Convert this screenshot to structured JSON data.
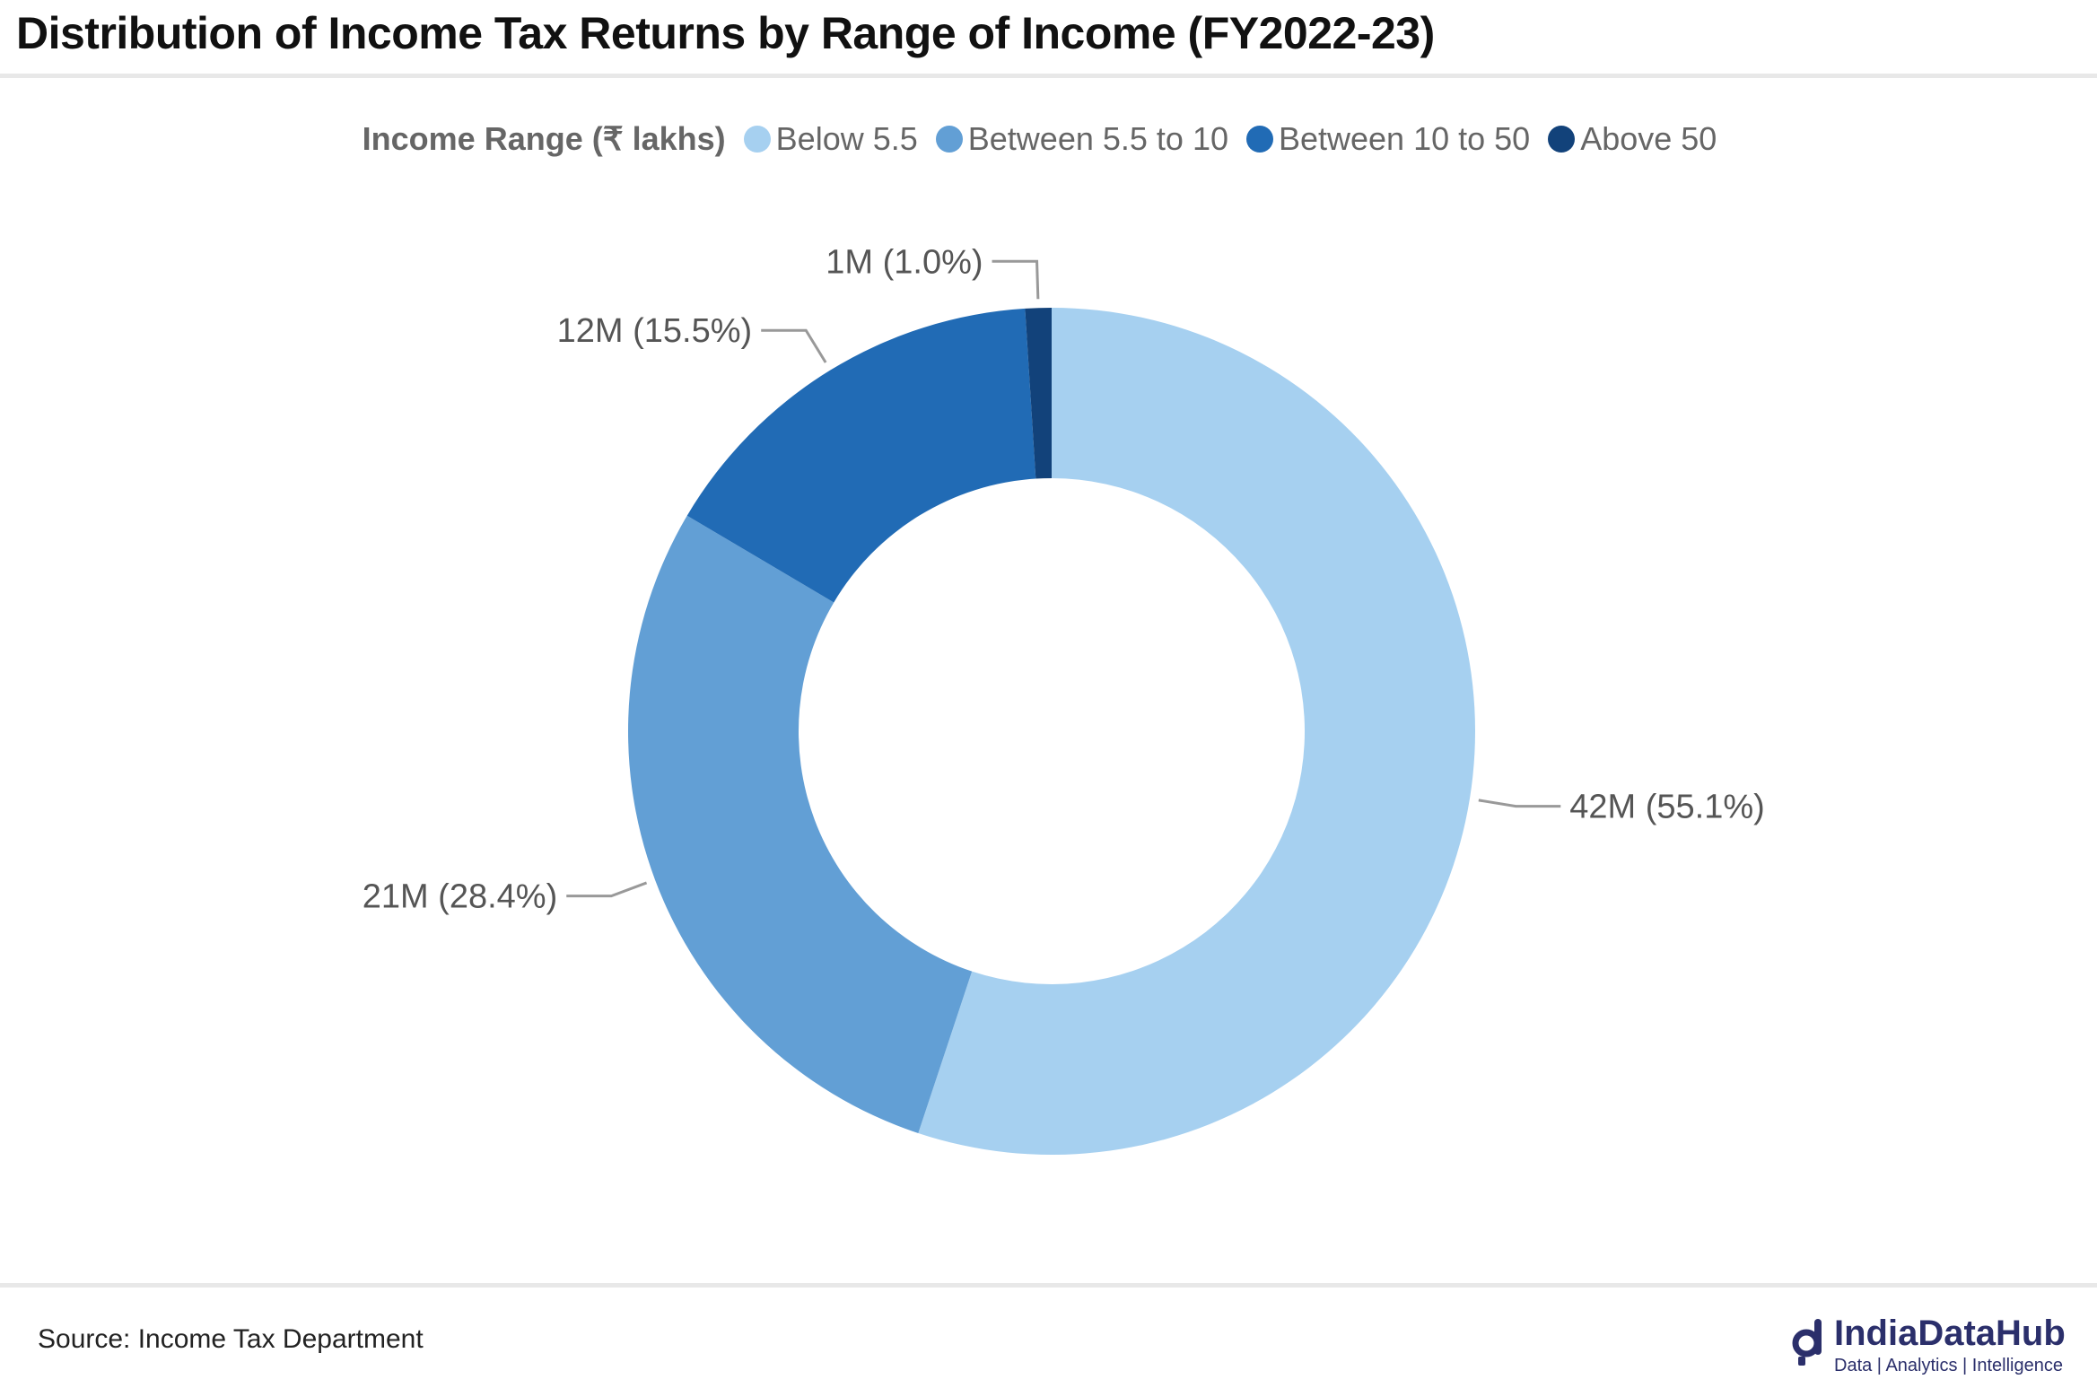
{
  "title": "Distribution of Income Tax Returns by Range of Income (FY2022-23)",
  "legend": {
    "title": "Income Range (₹ lakhs)",
    "items": [
      {
        "label": "Below 5.5",
        "color": "#a6d0f0"
      },
      {
        "label": "Between 5.5 to 10",
        "color": "#629fd5"
      },
      {
        "label": "Between 10 to 50",
        "color": "#216bb5"
      },
      {
        "label": "Above 50",
        "color": "#12427a"
      }
    ]
  },
  "chart_data": {
    "type": "pie",
    "donut": true,
    "title": "Distribution of Income Tax Returns by Range of Income (FY2022-23)",
    "legend_title": "Income Range (₹ lakhs)",
    "legend_position": "top-center",
    "slices": [
      {
        "label": "Below 5.5",
        "value": 42,
        "percent": 55.1,
        "data_label": "42M (55.1%)",
        "color": "#a6d0f0"
      },
      {
        "label": "Between 5.5 to 10",
        "value": 21,
        "percent": 28.4,
        "data_label": "21M (28.4%)",
        "color": "#629fd5"
      },
      {
        "label": "Between 10 to 50",
        "value": 12,
        "percent": 15.5,
        "data_label": "12M (15.5%)",
        "color": "#216bb5"
      },
      {
        "label": "Above 50",
        "value": 1,
        "percent": 1.0,
        "data_label": "1M (1.0%)",
        "color": "#12427a"
      }
    ]
  },
  "footer": {
    "source": "Source: Income Tax Department",
    "brand_name": "IndiaDataHub",
    "brand_tagline": "Data | Analytics | Intelligence"
  }
}
